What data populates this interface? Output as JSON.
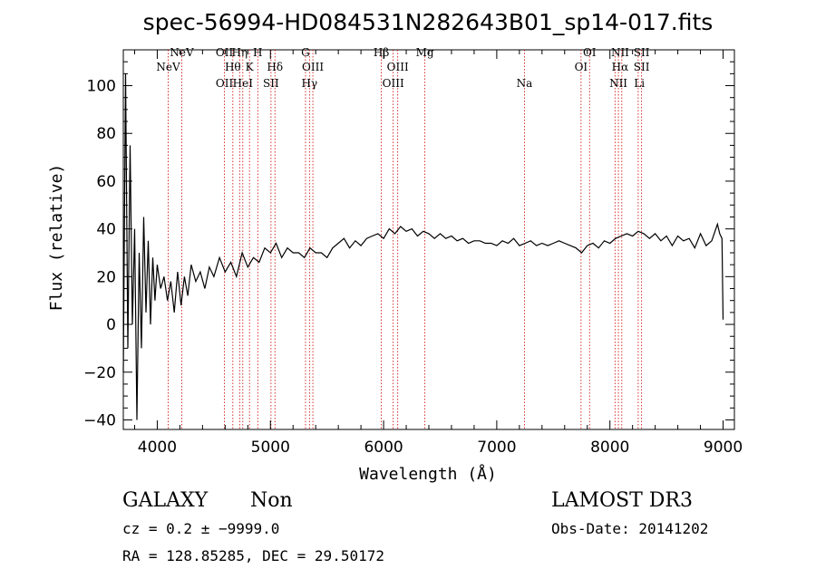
{
  "chart_data": {
    "type": "line",
    "title": "spec-56994-HD084531N282643B01_sp14-017.fits",
    "xlabel": "Wavelength (Å)",
    "ylabel": "Flux (relative)",
    "xlim": [
      3700,
      9100
    ],
    "ylim": [
      -44,
      115
    ],
    "xticks": [
      4000,
      5000,
      6000,
      7000,
      8000,
      9000
    ],
    "yticks": [
      -40,
      -20,
      0,
      20,
      40,
      60,
      80,
      100
    ],
    "xtick_labels": [
      "4000",
      "5000",
      "6000",
      "7000",
      "8000",
      "9000"
    ],
    "ytick_labels": [
      "−40",
      "−20",
      "0",
      "20",
      "40",
      "60",
      "80",
      "100"
    ],
    "spectrum": {
      "name": "flux",
      "x": [
        3700,
        3720,
        3740,
        3760,
        3780,
        3800,
        3820,
        3840,
        3860,
        3880,
        3900,
        3920,
        3940,
        3960,
        3980,
        4000,
        4030,
        4060,
        4090,
        4120,
        4150,
        4180,
        4210,
        4240,
        4270,
        4300,
        4340,
        4380,
        4420,
        4460,
        4500,
        4550,
        4600,
        4650,
        4700,
        4750,
        4800,
        4850,
        4900,
        4950,
        5000,
        5050,
        5100,
        5150,
        5200,
        5250,
        5300,
        5350,
        5400,
        5450,
        5500,
        5550,
        5600,
        5650,
        5700,
        5750,
        5800,
        5850,
        5900,
        5950,
        6000,
        6050,
        6100,
        6150,
        6200,
        6250,
        6300,
        6350,
        6400,
        6450,
        6500,
        6550,
        6600,
        6650,
        6700,
        6750,
        6800,
        6850,
        6900,
        6950,
        7000,
        7050,
        7100,
        7150,
        7200,
        7250,
        7300,
        7350,
        7400,
        7450,
        7500,
        7550,
        7600,
        7650,
        7700,
        7750,
        7800,
        7850,
        7900,
        7950,
        8000,
        8050,
        8100,
        8150,
        8200,
        8250,
        8300,
        8350,
        8400,
        8450,
        8500,
        8550,
        8600,
        8650,
        8700,
        8750,
        8800,
        8850,
        8900,
        8950,
        8970,
        8990,
        9000
      ],
      "y": [
        -20,
        105,
        -10,
        75,
        0,
        40,
        -40,
        30,
        -10,
        45,
        5,
        35,
        0,
        28,
        10,
        25,
        15,
        20,
        10,
        18,
        5,
        22,
        8,
        20,
        12,
        25,
        18,
        22,
        15,
        24,
        20,
        28,
        22,
        26,
        20,
        30,
        24,
        28,
        26,
        32,
        30,
        34,
        28,
        32,
        30,
        30,
        28,
        32,
        30,
        30,
        28,
        32,
        34,
        36,
        32,
        35,
        33,
        36,
        37,
        38,
        36,
        40,
        38,
        41,
        39,
        40,
        37,
        39,
        38,
        36,
        38,
        36,
        37,
        35,
        36,
        34,
        35,
        35,
        34,
        34,
        33,
        35,
        34,
        36,
        33,
        34,
        35,
        33,
        34,
        33,
        34,
        35,
        34,
        33,
        32,
        30,
        33,
        34,
        32,
        35,
        34,
        36,
        37,
        38,
        37,
        39,
        38,
        36,
        38,
        35,
        37,
        33,
        37,
        35,
        36,
        32,
        38,
        33,
        35,
        42,
        38,
        36,
        2
      ]
    },
    "spectral_lines": [
      {
        "label": "NeV",
        "wavelength": 4097,
        "row": 1
      },
      {
        "label": "NeV",
        "wavelength": 4217,
        "row": 0
      },
      {
        "label": "OII",
        "wavelength": 4594,
        "row": 0
      },
      {
        "label": "OII",
        "wavelength": 4594,
        "row": 2
      },
      {
        "label": "Hθ",
        "wavelength": 4668,
        "row": 1
      },
      {
        "label": "Hη",
        "wavelength": 4728,
        "row": 0
      },
      {
        "label": "HeI",
        "wavelength": 4756,
        "row": 2
      },
      {
        "label": "K",
        "wavelength": 4815,
        "row": 1
      },
      {
        "label": "H",
        "wavelength": 4888,
        "row": 0
      },
      {
        "label": "Hδ",
        "wavelength": 5040,
        "row": 1
      },
      {
        "label": "SII",
        "wavelength": 5005,
        "row": 2
      },
      {
        "label": "G",
        "wavelength": 5310,
        "row": 0
      },
      {
        "label": "OIII",
        "wavelength": 5375,
        "row": 1
      },
      {
        "label": "Hγ",
        "wavelength": 5345,
        "row": 2
      },
      {
        "label": "Hβ",
        "wavelength": 5980,
        "row": 0
      },
      {
        "label": "OIII",
        "wavelength": 6125,
        "row": 1
      },
      {
        "label": "OIII",
        "wavelength": 6085,
        "row": 2
      },
      {
        "label": "Mg",
        "wavelength": 6365,
        "row": 0
      },
      {
        "label": "Na",
        "wavelength": 7245,
        "row": 2
      },
      {
        "label": "OI",
        "wavelength": 7820,
        "row": 0
      },
      {
        "label": "OI",
        "wavelength": 7745,
        "row": 1
      },
      {
        "label": "NII",
        "wavelength": 8090,
        "row": 0
      },
      {
        "label": "Hα",
        "wavelength": 8090,
        "row": 1
      },
      {
        "label": "NII",
        "wavelength": 8075,
        "row": 2
      },
      {
        "label": "SII",
        "wavelength": 8280,
        "row": 0
      },
      {
        "label": "SII",
        "wavelength": 8280,
        "row": 1
      },
      {
        "label": "Li",
        "wavelength": 8260,
        "row": 2
      }
    ],
    "line_markers": [
      4097,
      4217,
      4594,
      4668,
      4728,
      4756,
      4815,
      4888,
      5005,
      5040,
      5310,
      5345,
      5375,
      5980,
      6085,
      6125,
      6365,
      7245,
      7745,
      7820,
      8045,
      8075,
      8105,
      8250,
      8280
    ],
    "marker_color": "#cc0000",
    "line_color": "#000000"
  },
  "info": {
    "class": "GALAXY",
    "subclass": "Non",
    "survey": "LAMOST DR3",
    "cz": "cz = 0.2 ± −9999.0",
    "obs_date": "Obs-Date: 20141202",
    "coords": "RA = 128.85285, DEC =  29.50172"
  }
}
